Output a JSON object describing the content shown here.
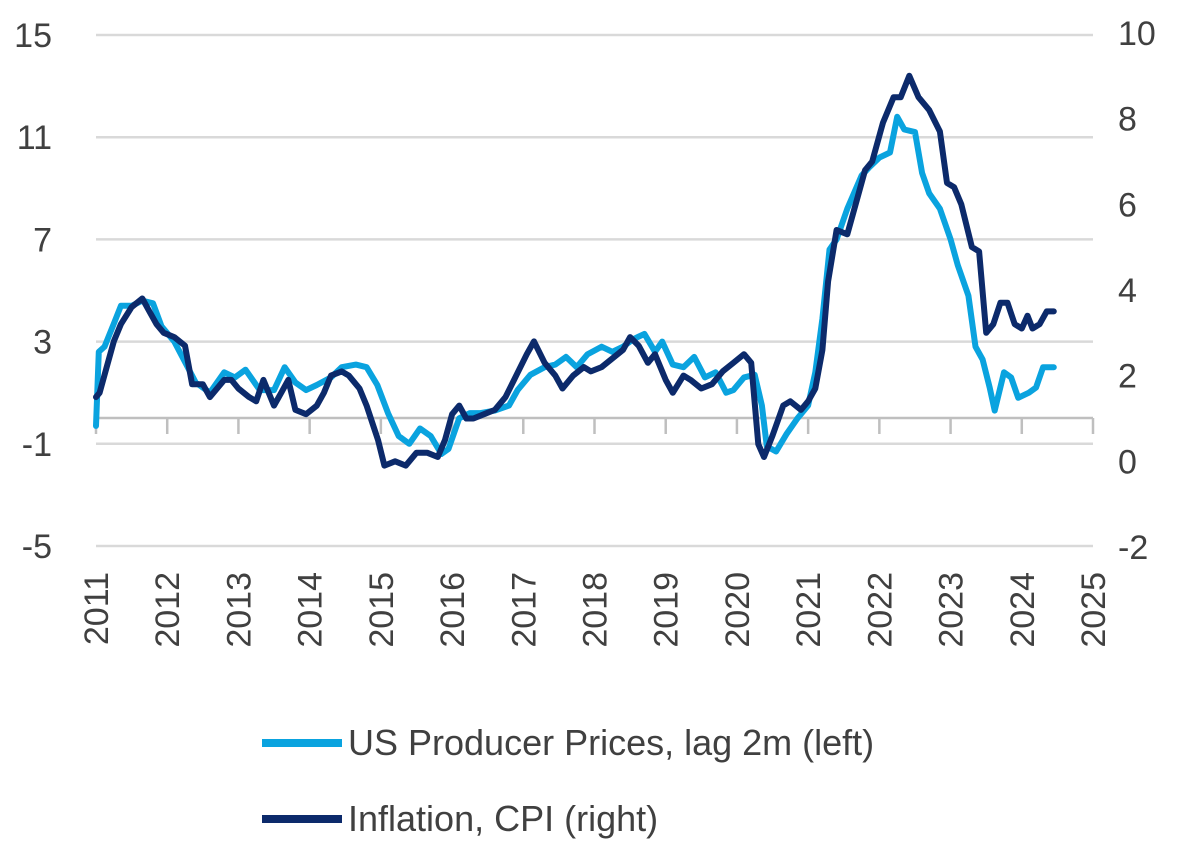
{
  "chart_data": {
    "type": "line",
    "xlabel": "",
    "ylabel": "",
    "x_ticks": [
      "2011",
      "2012",
      "2013",
      "2014",
      "2015",
      "2016",
      "2017",
      "2018",
      "2019",
      "2020",
      "2021",
      "2022",
      "2023",
      "2024",
      "2025"
    ],
    "x_range": [
      2011,
      2025
    ],
    "y_left": {
      "ticks": [
        "15",
        "11",
        "7",
        "3",
        "-1",
        "-5"
      ],
      "range": [
        -5,
        15
      ]
    },
    "y_right": {
      "ticks": [
        "10",
        "8",
        "6",
        "4",
        "2",
        "0",
        "-2"
      ],
      "range": [
        -2,
        10
      ]
    },
    "grid": true,
    "legend_position": "bottom",
    "series": [
      {
        "name": "US Producer Prices, lag 2m (left)",
        "axis": "left",
        "color": "#0aa3df",
        "points": [
          [
            2011.0,
            -0.3
          ],
          [
            2011.04,
            2.6
          ],
          [
            2011.12,
            2.8
          ],
          [
            2011.25,
            3.7
          ],
          [
            2011.35,
            4.4
          ],
          [
            2011.5,
            4.4
          ],
          [
            2011.65,
            4.6
          ],
          [
            2011.8,
            4.5
          ],
          [
            2011.92,
            3.6
          ],
          [
            2012.1,
            3.0
          ],
          [
            2012.25,
            2.2
          ],
          [
            2012.4,
            1.4
          ],
          [
            2012.6,
            1.0
          ],
          [
            2012.8,
            1.8
          ],
          [
            2012.95,
            1.6
          ],
          [
            2013.1,
            1.9
          ],
          [
            2013.3,
            1.1
          ],
          [
            2013.5,
            1.1
          ],
          [
            2013.65,
            2.0
          ],
          [
            2013.8,
            1.4
          ],
          [
            2013.95,
            1.1
          ],
          [
            2014.1,
            1.3
          ],
          [
            2014.3,
            1.6
          ],
          [
            2014.45,
            2.0
          ],
          [
            2014.65,
            2.1
          ],
          [
            2014.8,
            2.0
          ],
          [
            2014.95,
            1.3
          ],
          [
            2015.1,
            0.2
          ],
          [
            2015.25,
            -0.7
          ],
          [
            2015.4,
            -1.0
          ],
          [
            2015.55,
            -0.4
          ],
          [
            2015.7,
            -0.7
          ],
          [
            2015.85,
            -1.4
          ],
          [
            2015.95,
            -1.2
          ],
          [
            2016.1,
            0.0
          ],
          [
            2016.25,
            0.2
          ],
          [
            2016.4,
            0.2
          ],
          [
            2016.6,
            0.3
          ],
          [
            2016.8,
            0.5
          ],
          [
            2016.92,
            1.1
          ],
          [
            2017.1,
            1.7
          ],
          [
            2017.3,
            2.0
          ],
          [
            2017.45,
            2.1
          ],
          [
            2017.6,
            2.4
          ],
          [
            2017.75,
            2.0
          ],
          [
            2017.9,
            2.5
          ],
          [
            2018.1,
            2.8
          ],
          [
            2018.25,
            2.6
          ],
          [
            2018.4,
            2.8
          ],
          [
            2018.55,
            3.1
          ],
          [
            2018.7,
            3.3
          ],
          [
            2018.85,
            2.6
          ],
          [
            2018.95,
            3.0
          ],
          [
            2019.1,
            2.1
          ],
          [
            2019.25,
            2.0
          ],
          [
            2019.4,
            2.4
          ],
          [
            2019.55,
            1.6
          ],
          [
            2019.7,
            1.8
          ],
          [
            2019.85,
            1.0
          ],
          [
            2019.95,
            1.1
          ],
          [
            2020.1,
            1.6
          ],
          [
            2020.25,
            1.7
          ],
          [
            2020.35,
            0.5
          ],
          [
            2020.42,
            -1.1
          ],
          [
            2020.55,
            -1.3
          ],
          [
            2020.7,
            -0.6
          ],
          [
            2020.85,
            0.0
          ],
          [
            2021.0,
            0.5
          ],
          [
            2021.1,
            1.8
          ],
          [
            2021.2,
            3.9
          ],
          [
            2021.3,
            6.6
          ],
          [
            2021.4,
            7.0
          ],
          [
            2021.55,
            8.2
          ],
          [
            2021.75,
            9.5
          ],
          [
            2021.85,
            9.8
          ],
          [
            2022.0,
            10.2
          ],
          [
            2022.15,
            10.4
          ],
          [
            2022.25,
            11.8
          ],
          [
            2022.35,
            11.3
          ],
          [
            2022.5,
            11.2
          ],
          [
            2022.6,
            9.6
          ],
          [
            2022.7,
            8.8
          ],
          [
            2022.85,
            8.2
          ],
          [
            2023.0,
            7.0
          ],
          [
            2023.1,
            6.0
          ],
          [
            2023.25,
            4.8
          ],
          [
            2023.35,
            2.8
          ],
          [
            2023.45,
            2.3
          ],
          [
            2023.55,
            1.2
          ],
          [
            2023.62,
            0.3
          ],
          [
            2023.75,
            1.8
          ],
          [
            2023.85,
            1.6
          ],
          [
            2023.95,
            0.8
          ],
          [
            2024.1,
            1.0
          ],
          [
            2024.2,
            1.2
          ],
          [
            2024.3,
            2.0
          ],
          [
            2024.45,
            2.0
          ]
        ]
      },
      {
        "name": "Inflation, CPI (right)",
        "axis": "right",
        "color": "#0c2a6b",
        "points": [
          [
            2011.0,
            1.5
          ],
          [
            2011.05,
            1.6
          ],
          [
            2011.15,
            2.2
          ],
          [
            2011.25,
            2.8
          ],
          [
            2011.35,
            3.2
          ],
          [
            2011.5,
            3.6
          ],
          [
            2011.65,
            3.8
          ],
          [
            2011.75,
            3.5
          ],
          [
            2011.85,
            3.2
          ],
          [
            2011.95,
            3.0
          ],
          [
            2012.1,
            2.9
          ],
          [
            2012.25,
            2.7
          ],
          [
            2012.35,
            1.8
          ],
          [
            2012.5,
            1.8
          ],
          [
            2012.6,
            1.5
          ],
          [
            2012.8,
            1.9
          ],
          [
            2012.9,
            1.9
          ],
          [
            2013.0,
            1.7
          ],
          [
            2013.15,
            1.5
          ],
          [
            2013.25,
            1.4
          ],
          [
            2013.35,
            1.9
          ],
          [
            2013.5,
            1.3
          ],
          [
            2013.6,
            1.6
          ],
          [
            2013.7,
            1.9
          ],
          [
            2013.8,
            1.2
          ],
          [
            2013.95,
            1.1
          ],
          [
            2014.1,
            1.3
          ],
          [
            2014.2,
            1.6
          ],
          [
            2014.3,
            2.0
          ],
          [
            2014.45,
            2.1
          ],
          [
            2014.55,
            2.0
          ],
          [
            2014.7,
            1.7
          ],
          [
            2014.8,
            1.3
          ],
          [
            2014.9,
            0.8
          ],
          [
            2014.96,
            0.5
          ],
          [
            2015.05,
            -0.1
          ],
          [
            2015.2,
            0.0
          ],
          [
            2015.35,
            -0.1
          ],
          [
            2015.5,
            0.2
          ],
          [
            2015.65,
            0.2
          ],
          [
            2015.8,
            0.1
          ],
          [
            2015.9,
            0.5
          ],
          [
            2016.0,
            1.1
          ],
          [
            2016.1,
            1.3
          ],
          [
            2016.2,
            1.0
          ],
          [
            2016.3,
            1.0
          ],
          [
            2016.45,
            1.1
          ],
          [
            2016.6,
            1.2
          ],
          [
            2016.75,
            1.5
          ],
          [
            2016.9,
            2.0
          ],
          [
            2017.05,
            2.5
          ],
          [
            2017.15,
            2.8
          ],
          [
            2017.3,
            2.3
          ],
          [
            2017.45,
            2.0
          ],
          [
            2017.55,
            1.7
          ],
          [
            2017.7,
            2.0
          ],
          [
            2017.85,
            2.2
          ],
          [
            2017.95,
            2.1
          ],
          [
            2018.1,
            2.2
          ],
          [
            2018.25,
            2.4
          ],
          [
            2018.4,
            2.6
          ],
          [
            2018.5,
            2.9
          ],
          [
            2018.62,
            2.7
          ],
          [
            2018.75,
            2.3
          ],
          [
            2018.85,
            2.5
          ],
          [
            2019.0,
            1.9
          ],
          [
            2019.1,
            1.6
          ],
          [
            2019.25,
            2.0
          ],
          [
            2019.35,
            1.9
          ],
          [
            2019.5,
            1.7
          ],
          [
            2019.65,
            1.8
          ],
          [
            2019.8,
            2.1
          ],
          [
            2019.95,
            2.3
          ],
          [
            2020.1,
            2.5
          ],
          [
            2020.2,
            2.3
          ],
          [
            2020.3,
            0.4
          ],
          [
            2020.38,
            0.1
          ],
          [
            2020.5,
            0.6
          ],
          [
            2020.65,
            1.3
          ],
          [
            2020.75,
            1.4
          ],
          [
            2020.9,
            1.2
          ],
          [
            2021.0,
            1.4
          ],
          [
            2021.1,
            1.7
          ],
          [
            2021.2,
            2.6
          ],
          [
            2021.28,
            4.2
          ],
          [
            2021.4,
            5.4
          ],
          [
            2021.55,
            5.3
          ],
          [
            2021.7,
            6.2
          ],
          [
            2021.8,
            6.8
          ],
          [
            2021.9,
            7.0
          ],
          [
            2022.05,
            7.9
          ],
          [
            2022.2,
            8.5
          ],
          [
            2022.3,
            8.5
          ],
          [
            2022.42,
            9.0
          ],
          [
            2022.55,
            8.5
          ],
          [
            2022.7,
            8.2
          ],
          [
            2022.85,
            7.7
          ],
          [
            2022.95,
            6.5
          ],
          [
            2023.05,
            6.4
          ],
          [
            2023.15,
            6.0
          ],
          [
            2023.3,
            5.0
          ],
          [
            2023.4,
            4.9
          ],
          [
            2023.5,
            3.0
          ],
          [
            2023.6,
            3.2
          ],
          [
            2023.7,
            3.7
          ],
          [
            2023.8,
            3.7
          ],
          [
            2023.9,
            3.2
          ],
          [
            2024.0,
            3.1
          ],
          [
            2024.08,
            3.4
          ],
          [
            2024.15,
            3.1
          ],
          [
            2024.25,
            3.2
          ],
          [
            2024.35,
            3.5
          ],
          [
            2024.45,
            3.5
          ]
        ]
      }
    ]
  }
}
